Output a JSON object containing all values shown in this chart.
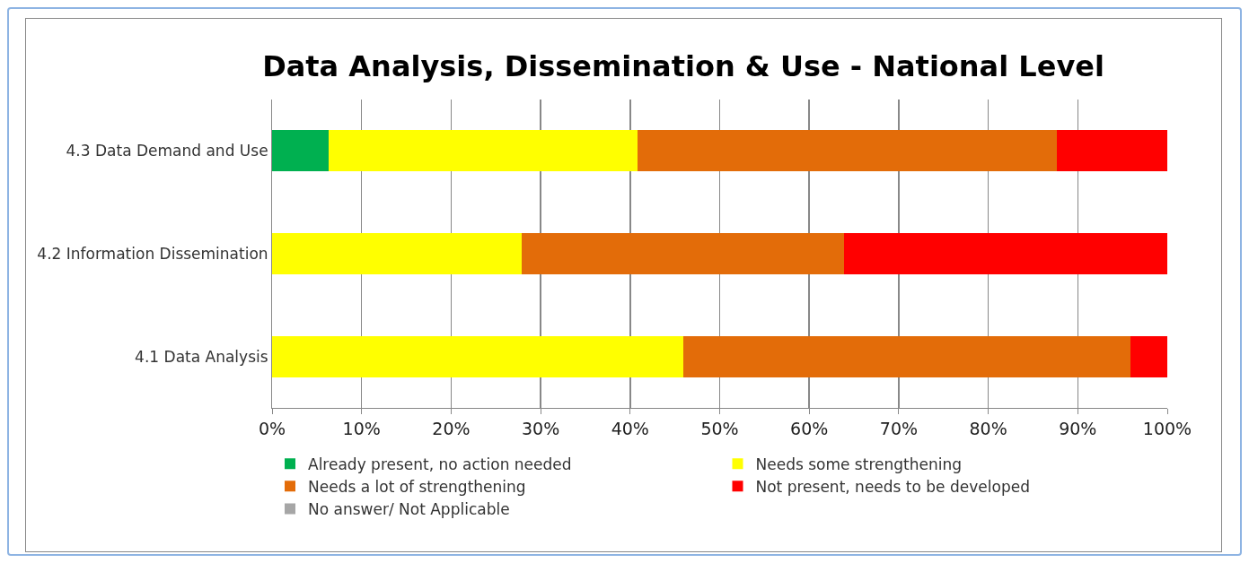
{
  "chart_data": {
    "type": "bar",
    "orientation": "horizontal",
    "stacked": true,
    "title": "Data Analysis, Dissemination & Use - National Level",
    "categories": [
      "4.3 Data Demand and Use",
      "4.2 Information Dissemination",
      "4.1 Data Analysis"
    ],
    "series": [
      {
        "name": "Already present, no action needed",
        "color": "#00b050",
        "values": [
          6.3,
          0,
          0
        ]
      },
      {
        "name": "Needs some strengthening",
        "color": "#ffff00",
        "values": [
          34.5,
          27.9,
          45.9
        ]
      },
      {
        "name": "Needs a lot of strengthening",
        "color": "#e36c09",
        "values": [
          46.9,
          36,
          50
        ]
      },
      {
        "name": "Not present, needs to be developed",
        "color": "#ff0000",
        "values": [
          12.3,
          36.1,
          4.1
        ]
      },
      {
        "name": "No answer/ Not Applicable",
        "color": "#a6a6a6",
        "values": [
          0,
          0,
          0
        ]
      }
    ],
    "xlim": [
      0,
      100
    ],
    "xticks": [
      {
        "value": 0,
        "label": "0%"
      },
      {
        "value": 10,
        "label": "10%"
      },
      {
        "value": 20,
        "label": "20%"
      },
      {
        "value": 30,
        "label": "30%"
      },
      {
        "value": 40,
        "label": "40%"
      },
      {
        "value": 50,
        "label": "50%"
      },
      {
        "value": 60,
        "label": "60%"
      },
      {
        "value": 70,
        "label": "70%"
      },
      {
        "value": 80,
        "label": "80%"
      },
      {
        "value": 90,
        "label": "90%"
      },
      {
        "value": 100,
        "label": "100%"
      }
    ],
    "grid": "x",
    "legend": "bottom"
  }
}
